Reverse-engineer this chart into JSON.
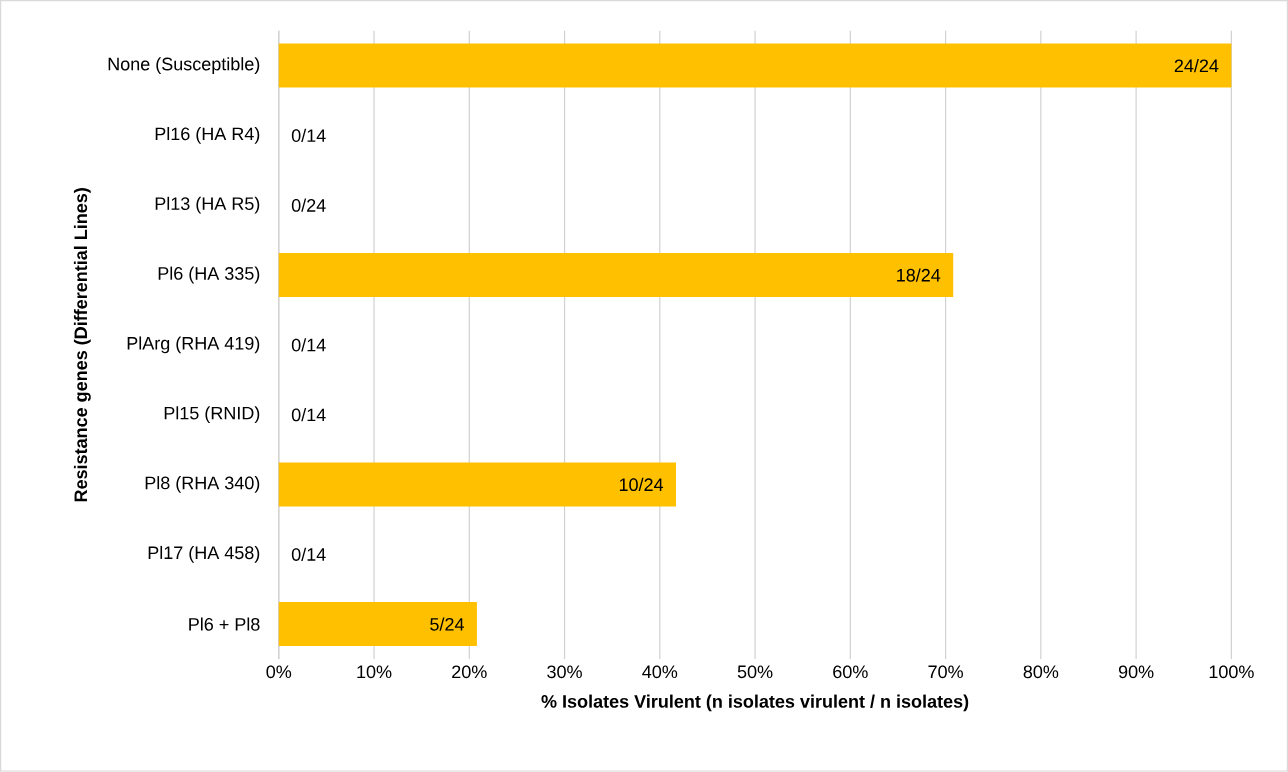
{
  "chart_data": {
    "type": "bar",
    "orientation": "horizontal",
    "xlabel": "% Isolates Virulent (n isolates virulent / n isolates)",
    "ylabel": "Resistance genes (Differential Lines)",
    "categories": [
      "None (Susceptible)",
      "Pl16 (HA R4)",
      "Pl13 (HA R5)",
      "Pl6 (HA 335)",
      "PlArg (RHA 419)",
      "Pl15 (RNID)",
      "Pl8 (RHA 340)",
      "Pl17 (HA 458)",
      "Pl6 + Pl8"
    ],
    "values": [
      100,
      0,
      0,
      70.8,
      0,
      0,
      41.7,
      0,
      20.8
    ],
    "value_labels": [
      "24/24",
      "0/14",
      "0/24",
      "18/24",
      "0/14",
      "0/14",
      "10/24",
      "0/14",
      "5/24"
    ],
    "color": "#ffc000",
    "xlim": [
      0,
      100
    ],
    "xticks": [
      {
        "value": 0,
        "label": "0%"
      },
      {
        "value": 10,
        "label": "10%"
      },
      {
        "value": 20,
        "label": "20%"
      },
      {
        "value": 30,
        "label": "30%"
      },
      {
        "value": 40,
        "label": "40%"
      },
      {
        "value": 50,
        "label": "50%"
      },
      {
        "value": 60,
        "label": "60%"
      },
      {
        "value": 70,
        "label": "70%"
      },
      {
        "value": 80,
        "label": "80%"
      },
      {
        "value": 90,
        "label": "90%"
      },
      {
        "value": 100,
        "label": "100%"
      }
    ],
    "grid": "x"
  }
}
